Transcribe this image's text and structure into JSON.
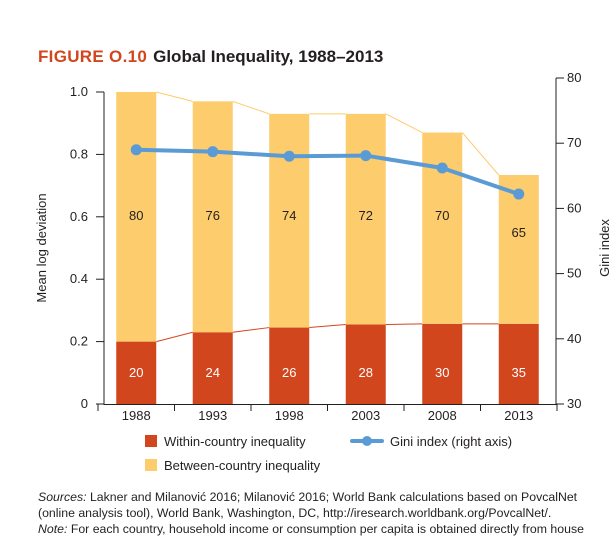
{
  "figure": {
    "label": "FIGURE O.10",
    "title": "Global Inequality, 1988–2013"
  },
  "colors": {
    "within": "#d2461e",
    "between": "#fdcc6c",
    "gini": "#5b9bd5",
    "title_label": "#d2461e"
  },
  "chart_data": {
    "type": "bar",
    "stacked": true,
    "categories": [
      "1988",
      "1993",
      "1998",
      "2003",
      "2008",
      "2013"
    ],
    "series": [
      {
        "name": "Within-country inequality",
        "values": [
          0.2,
          0.23,
          0.245,
          0.255,
          0.257,
          0.257
        ],
        "labels": [
          "20",
          "24",
          "26",
          "28",
          "30",
          "35"
        ],
        "color": "#d2461e"
      },
      {
        "name": "Between-country inequality",
        "values": [
          0.8,
          0.74,
          0.685,
          0.675,
          0.613,
          0.477
        ],
        "labels": [
          "80",
          "76",
          "74",
          "72",
          "70",
          "65"
        ],
        "color": "#fdcc6c"
      }
    ],
    "line_series": {
      "name": "Gini index (right axis)",
      "axis": "right",
      "values": [
        69.0,
        68.7,
        68.0,
        68.1,
        66.2,
        62.2
      ],
      "color": "#5b9bd5"
    },
    "ylabel": "Mean log deviation",
    "y2label": "Gini index",
    "ylim": [
      0,
      1.0
    ],
    "y2lim": [
      30,
      80
    ],
    "yticks": [
      "0",
      "0.2",
      "0.4",
      "0.6",
      "0.8",
      "1.0"
    ],
    "y2ticks": [
      "30",
      "40",
      "50",
      "60",
      "70",
      "80"
    ],
    "legend_position": "bottom"
  },
  "legend": {
    "within": "Within-country inequality",
    "between": "Between-country inequality",
    "gini": "Gini index (right axis)"
  },
  "sources": {
    "label": "Sources:",
    "text": "Lakner and Milanović 2016; Milanović 2016; World Bank calculations based on PovcalNet (online analysis tool), World Bank, Washington, DC, http://iresearch.worldbank.org/PovcalNet/."
  },
  "note": {
    "label": "Note:",
    "text": "For each country, household income or consumption per capita is obtained directly from house"
  }
}
